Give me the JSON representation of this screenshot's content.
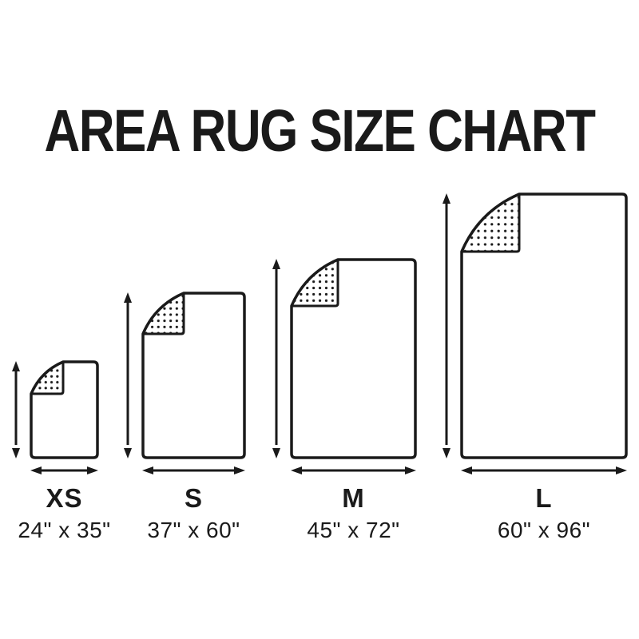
{
  "title": "AREA RUG SIZE CHART",
  "sizes": [
    {
      "code": "XS",
      "width_in": 24,
      "height_in": 35,
      "dimensions_label": "24\" x 35\""
    },
    {
      "code": "S",
      "width_in": 37,
      "height_in": 60,
      "dimensions_label": "37\" x 60\""
    },
    {
      "code": "M",
      "width_in": 45,
      "height_in": 72,
      "dimensions_label": "45\" x 72\""
    },
    {
      "code": "L",
      "width_in": 60,
      "height_in": 96,
      "dimensions_label": "60\" x 96\""
    }
  ],
  "colors": {
    "ink": "#1a1a1a",
    "background": "#ffffff"
  }
}
